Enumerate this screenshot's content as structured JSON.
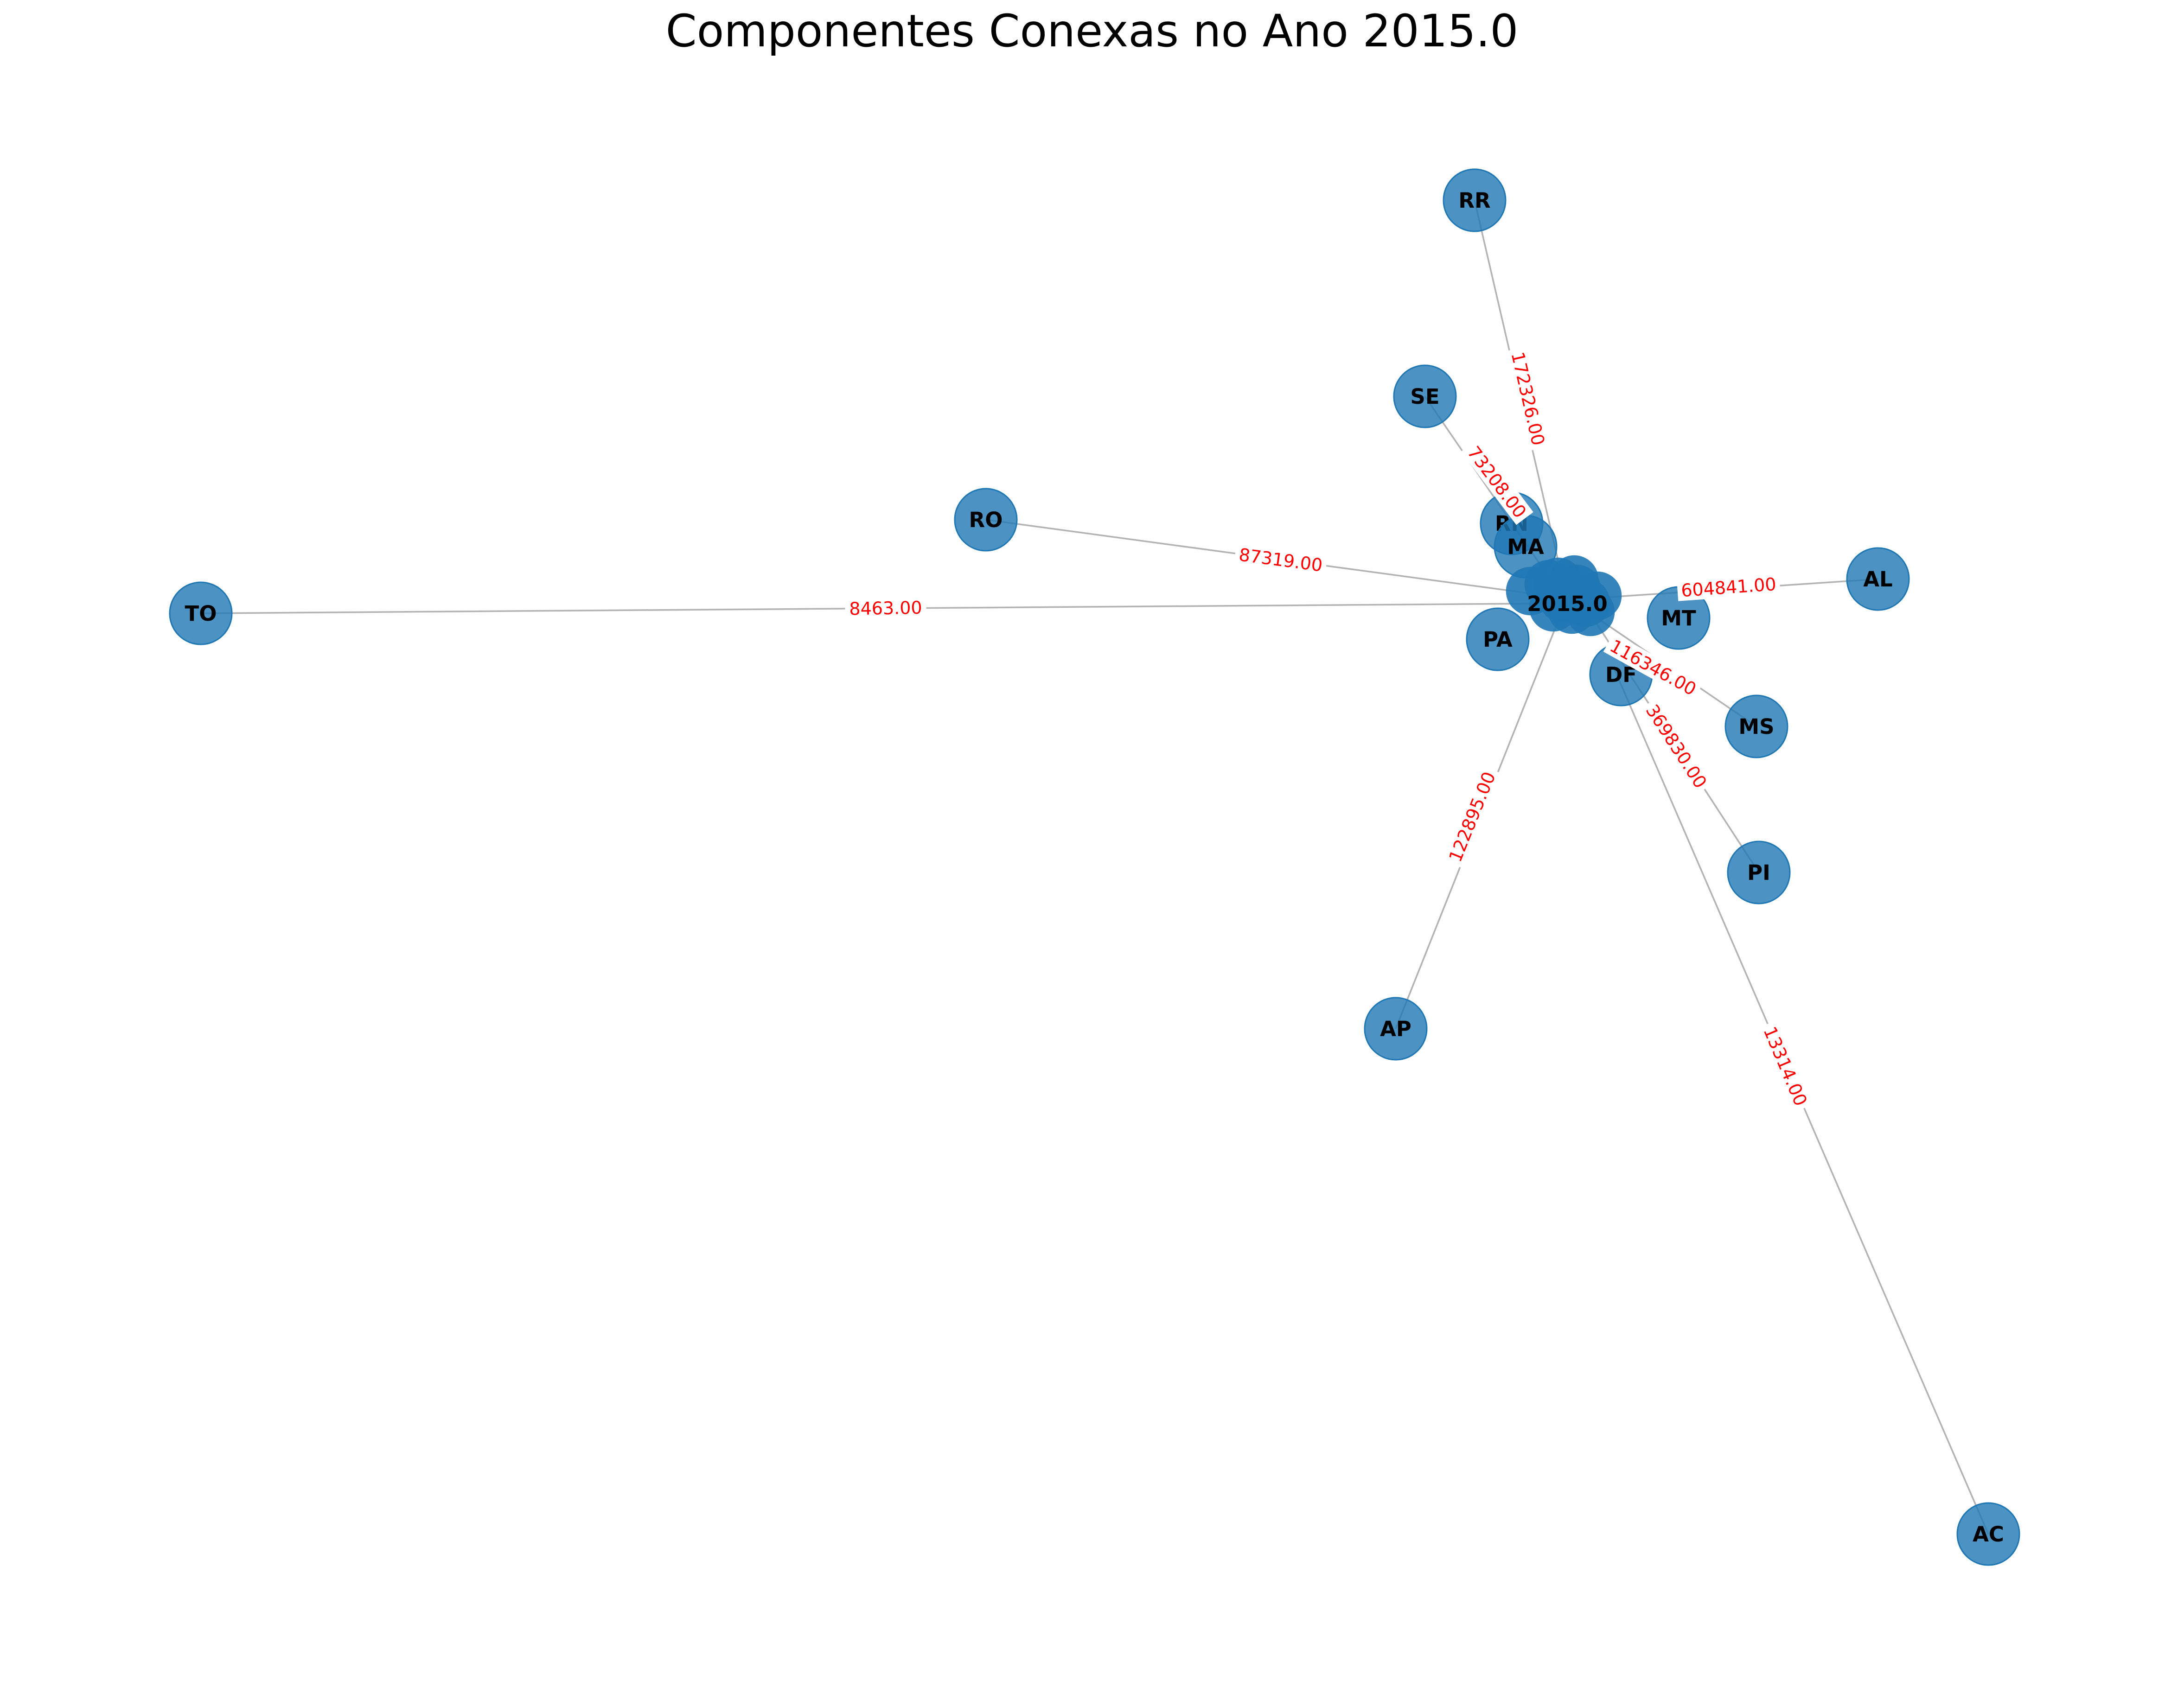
{
  "title": "Componentes Conexas no Ano 2015.0",
  "colors": {
    "node": "#1f77b4",
    "edge": "#b3b3b3",
    "edge_label": "#ff0000"
  },
  "hub": {
    "label": "2015.0"
  },
  "nodes": [
    {
      "id": "rr",
      "label": "RR"
    },
    {
      "id": "se",
      "label": "SE"
    },
    {
      "id": "ro",
      "label": "RO"
    },
    {
      "id": "rn",
      "label": "RN"
    },
    {
      "id": "ma",
      "label": "MA"
    },
    {
      "id": "to",
      "label": "TO"
    },
    {
      "id": "al",
      "label": "AL"
    },
    {
      "id": "mt",
      "label": "MT"
    },
    {
      "id": "pa",
      "label": "PA"
    },
    {
      "id": "df",
      "label": "DF"
    },
    {
      "id": "ms",
      "label": "MS"
    },
    {
      "id": "pi",
      "label": "PI"
    },
    {
      "id": "ap",
      "label": "AP"
    },
    {
      "id": "ac",
      "label": "AC"
    }
  ],
  "edges": [
    {
      "to": "rr",
      "label": "172326.00"
    },
    {
      "to": "se",
      "label": "73208.00"
    },
    {
      "to": "ro",
      "label": "87319.00"
    },
    {
      "to": "to",
      "label": "8463.00"
    },
    {
      "to": "al",
      "label": "604841.00"
    },
    {
      "to": "ms",
      "label": "116346.00"
    },
    {
      "to": "pi",
      "label": "369830.00"
    },
    {
      "to": "ap",
      "label": "122895.00"
    },
    {
      "to": "ac",
      "label": "13314.00"
    }
  ]
}
